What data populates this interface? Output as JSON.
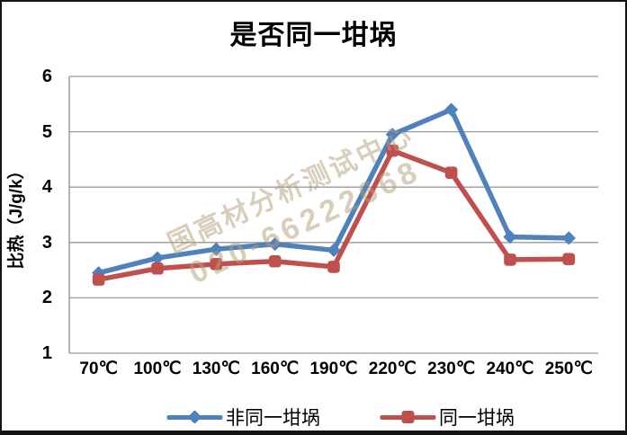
{
  "chart_data": {
    "type": "line",
    "title": "是否同一坩埚",
    "xlabel": "",
    "ylabel": "比热（J/g/k）",
    "categories": [
      "70℃",
      "100℃",
      "130℃",
      "160℃",
      "190℃",
      "220℃",
      "230℃",
      "240℃",
      "250℃"
    ],
    "series": [
      {
        "name": "非同一坩埚",
        "color": "#4F81BD",
        "marker": "diamond",
        "values": [
          2.45,
          2.72,
          2.88,
          2.97,
          2.86,
          4.95,
          5.4,
          3.1,
          3.08
        ]
      },
      {
        "name": "同一坩埚",
        "color": "#C0504D",
        "marker": "square",
        "values": [
          2.33,
          2.53,
          2.61,
          2.66,
          2.56,
          4.66,
          4.26,
          2.69,
          2.7
        ]
      }
    ],
    "ylim": [
      1,
      6
    ],
    "yticks": [
      1,
      2,
      3,
      4,
      5,
      6
    ],
    "grid": true,
    "gridline_color": "#9a9a9a",
    "legend_position": "bottom"
  },
  "watermark": {
    "line1": "国高材分析测试中心",
    "line2": "020-66222668"
  }
}
